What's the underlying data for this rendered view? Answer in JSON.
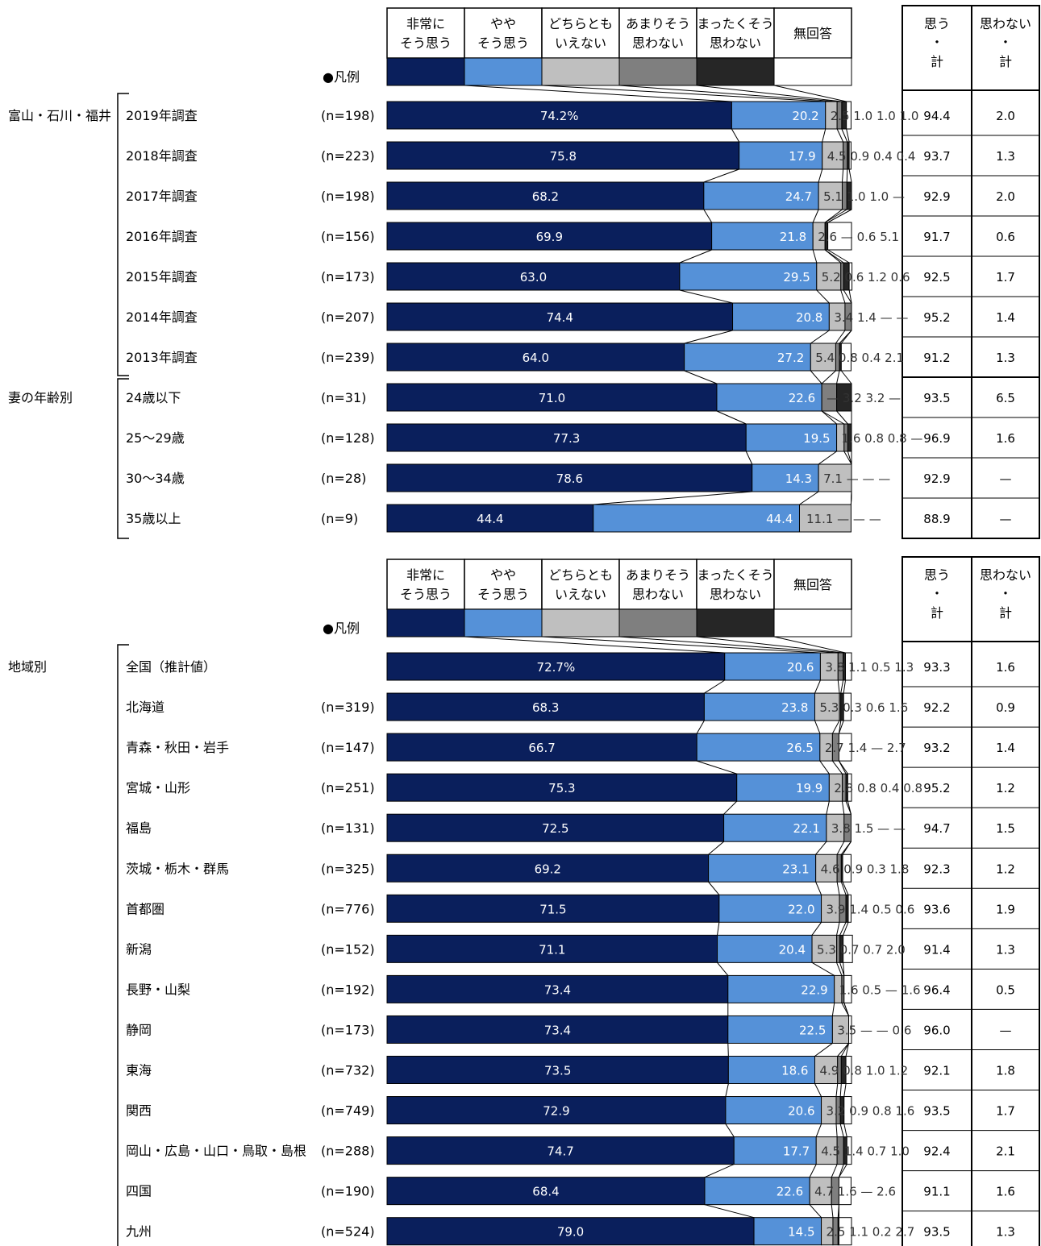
{
  "legend": {
    "marker": "●凡例",
    "categories": [
      {
        "line1": "非常に",
        "line2": "そう思う",
        "color": "#0a1f5c"
      },
      {
        "line1": "やや",
        "line2": "そう思う",
        "color": "#5591d8"
      },
      {
        "line1": "どちらとも",
        "line2": "いえない",
        "color": "#bfbfbf"
      },
      {
        "line1": "あまりそう",
        "line2": "思わない",
        "color": "#7f7f7f"
      },
      {
        "line1": "まったくそう",
        "line2": "思わない",
        "color": "#262626"
      },
      {
        "line1": "無回答",
        "line2": "",
        "color": "#ffffff"
      }
    ],
    "total_headers": [
      {
        "line1": "思う",
        "line2": "・",
        "line3": "計"
      },
      {
        "line1": "思わない",
        "line2": "・",
        "line3": "計"
      }
    ]
  },
  "chart_data": [
    {
      "type": "bar",
      "stacked": true,
      "orientation": "horizontal",
      "groups": [
        {
          "label": "富山・石川・福井",
          "rows": [
            0,
            6
          ]
        },
        {
          "label": "妻の年齢別",
          "rows": [
            7,
            10
          ]
        }
      ],
      "rows": [
        {
          "label": "2019年調査",
          "n": "(n=198)",
          "values": [
            74.2,
            20.2,
            2.5,
            1.0,
            1.0,
            1.0
          ],
          "value_labels": [
            "74.2%",
            "20.2",
            "2.5",
            "1.0",
            "1.0",
            "1.0"
          ],
          "total_yes": "94.4",
          "total_no": "2.0"
        },
        {
          "label": "2018年調査",
          "n": "(n=223)",
          "values": [
            75.8,
            17.9,
            4.5,
            0.9,
            0.4,
            0.4
          ],
          "value_labels": [
            "75.8",
            "17.9",
            "4.5",
            "0.9",
            "0.4",
            "0.4"
          ],
          "total_yes": "93.7",
          "total_no": "1.3"
        },
        {
          "label": "2017年調査",
          "n": "(n=198)",
          "values": [
            68.2,
            24.7,
            5.1,
            1.0,
            1.0,
            0
          ],
          "value_labels": [
            "68.2",
            "24.7",
            "5.1",
            "1.0",
            "1.0",
            "—"
          ],
          "total_yes": "92.9",
          "total_no": "2.0"
        },
        {
          "label": "2016年調査",
          "n": "(n=156)",
          "values": [
            69.9,
            21.8,
            2.6,
            0,
            0.6,
            5.1
          ],
          "value_labels": [
            "69.9",
            "21.8",
            "2.6",
            "—",
            "0.6",
            "5.1"
          ],
          "total_yes": "91.7",
          "total_no": "0.6"
        },
        {
          "label": "2015年調査",
          "n": "(n=173)",
          "values": [
            63.0,
            29.5,
            5.2,
            0.6,
            1.2,
            0.6
          ],
          "value_labels": [
            "63.0",
            "29.5",
            "5.2",
            "0.6",
            "1.2",
            "0.6"
          ],
          "total_yes": "92.5",
          "total_no": "1.7"
        },
        {
          "label": "2014年調査",
          "n": "(n=207)",
          "values": [
            74.4,
            20.8,
            3.4,
            1.4,
            0,
            0
          ],
          "value_labels": [
            "74.4",
            "20.8",
            "3.4",
            "1.4",
            "—",
            "—"
          ],
          "total_yes": "95.2",
          "total_no": "1.4"
        },
        {
          "label": "2013年調査",
          "n": "(n=239)",
          "values": [
            64.0,
            27.2,
            5.4,
            0.8,
            0.4,
            2.1
          ],
          "value_labels": [
            "64.0",
            "27.2",
            "5.4",
            "0.8",
            "0.4",
            "2.1"
          ],
          "total_yes": "91.2",
          "total_no": "1.3"
        },
        {
          "label": "24歳以下",
          "n": "(n=31)",
          "values": [
            71.0,
            22.6,
            0,
            3.2,
            3.2,
            0
          ],
          "value_labels": [
            "71.0",
            "22.6",
            "—",
            "3.2",
            "3.2",
            "—"
          ],
          "total_yes": "93.5",
          "total_no": "6.5"
        },
        {
          "label": "25～29歳",
          "n": "(n=128)",
          "values": [
            77.3,
            19.5,
            1.6,
            0.8,
            0.8,
            0
          ],
          "value_labels": [
            "77.3",
            "19.5",
            "1.6",
            "0.8",
            "0.8",
            "—"
          ],
          "total_yes": "96.9",
          "total_no": "1.6"
        },
        {
          "label": "30～34歳",
          "n": "(n=28)",
          "values": [
            78.6,
            14.3,
            7.1,
            0,
            0,
            0
          ],
          "value_labels": [
            "78.6",
            "14.3",
            "7.1",
            "—",
            "—",
            "—"
          ],
          "total_yes": "92.9",
          "total_no": "—"
        },
        {
          "label": "35歳以上",
          "n": "(n=9)",
          "values": [
            44.4,
            44.4,
            11.1,
            0,
            0,
            0
          ],
          "value_labels": [
            "44.4",
            "44.4",
            "11.1",
            "—",
            "—",
            "—"
          ],
          "total_yes": "88.9",
          "total_no": "—"
        }
      ]
    },
    {
      "type": "bar",
      "stacked": true,
      "orientation": "horizontal",
      "groups": [
        {
          "label": "地域別",
          "rows": [
            0,
            14
          ]
        }
      ],
      "rows": [
        {
          "label": "全国（推計値）",
          "n": "",
          "values": [
            72.7,
            20.6,
            3.8,
            1.1,
            0.5,
            1.3
          ],
          "value_labels": [
            "72.7%",
            "20.6",
            "3.8",
            "1.1",
            "0.5",
            "1.3"
          ],
          "total_yes": "93.3",
          "total_no": "1.6"
        },
        {
          "label": "北海道",
          "n": "(n=319)",
          "values": [
            68.3,
            23.8,
            5.3,
            0.3,
            0.6,
            1.6
          ],
          "value_labels": [
            "68.3",
            "23.8",
            "5.3",
            "0.3",
            "0.6",
            "1.6"
          ],
          "total_yes": "92.2",
          "total_no": "0.9"
        },
        {
          "label": "青森・秋田・岩手",
          "n": "(n=147)",
          "values": [
            66.7,
            26.5,
            2.7,
            1.4,
            0,
            2.7
          ],
          "value_labels": [
            "66.7",
            "26.5",
            "2.7",
            "1.4",
            "—",
            "2.7"
          ],
          "total_yes": "93.2",
          "total_no": "1.4"
        },
        {
          "label": "宮城・山形",
          "n": "(n=251)",
          "values": [
            75.3,
            19.9,
            2.8,
            0.8,
            0.4,
            0.8
          ],
          "value_labels": [
            "75.3",
            "19.9",
            "2.8",
            "0.8",
            "0.4",
            "0.8"
          ],
          "total_yes": "95.2",
          "total_no": "1.2"
        },
        {
          "label": "福島",
          "n": "(n=131)",
          "values": [
            72.5,
            22.1,
            3.8,
            1.5,
            0,
            0
          ],
          "value_labels": [
            "72.5",
            "22.1",
            "3.8",
            "1.5",
            "—",
            "—"
          ],
          "total_yes": "94.7",
          "total_no": "1.5"
        },
        {
          "label": "茨城・栃木・群馬",
          "n": "(n=325)",
          "values": [
            69.2,
            23.1,
            4.6,
            0.9,
            0.3,
            1.8
          ],
          "value_labels": [
            "69.2",
            "23.1",
            "4.6",
            "0.9",
            "0.3",
            "1.8"
          ],
          "total_yes": "92.3",
          "total_no": "1.2"
        },
        {
          "label": "首都圏",
          "n": "(n=776)",
          "values": [
            71.5,
            22.0,
            3.9,
            1.4,
            0.5,
            0.6
          ],
          "value_labels": [
            "71.5",
            "22.0",
            "3.9",
            "1.4",
            "0.5",
            "0.6"
          ],
          "total_yes": "93.6",
          "total_no": "1.9"
        },
        {
          "label": "新潟",
          "n": "(n=152)",
          "values": [
            71.1,
            20.4,
            5.3,
            0.7,
            0.7,
            2.0
          ],
          "value_labels": [
            "71.1",
            "20.4",
            "5.3",
            "0.7",
            "0.7",
            "2.0"
          ],
          "total_yes": "91.4",
          "total_no": "1.3"
        },
        {
          "label": "長野・山梨",
          "n": "(n=192)",
          "values": [
            73.4,
            22.9,
            1.6,
            0.5,
            0,
            1.6
          ],
          "value_labels": [
            "73.4",
            "22.9",
            "1.6",
            "0.5",
            "—",
            "1.6"
          ],
          "total_yes": "96.4",
          "total_no": "0.5"
        },
        {
          "label": "静岡",
          "n": "(n=173)",
          "values": [
            73.4,
            22.5,
            3.5,
            0,
            0,
            0.6
          ],
          "value_labels": [
            "73.4",
            "22.5",
            "3.5",
            "—",
            "—",
            "0.6"
          ],
          "total_yes": "96.0",
          "total_no": "—"
        },
        {
          "label": "東海",
          "n": "(n=732)",
          "values": [
            73.5,
            18.6,
            4.9,
            0.8,
            1.0,
            1.2
          ],
          "value_labels": [
            "73.5",
            "18.6",
            "4.9",
            "0.8",
            "1.0",
            "1.2"
          ],
          "total_yes": "92.1",
          "total_no": "1.8"
        },
        {
          "label": "関西",
          "n": "(n=749)",
          "values": [
            72.9,
            20.6,
            3.2,
            0.9,
            0.8,
            1.6
          ],
          "value_labels": [
            "72.9",
            "20.6",
            "3.2",
            "0.9",
            "0.8",
            "1.6"
          ],
          "total_yes": "93.5",
          "total_no": "1.7"
        },
        {
          "label": "岡山・広島・山口・鳥取・島根",
          "n": "(n=288)",
          "values": [
            74.7,
            17.7,
            4.5,
            1.4,
            0.7,
            1.0
          ],
          "value_labels": [
            "74.7",
            "17.7",
            "4.5",
            "1.4",
            "0.7",
            "1.0"
          ],
          "total_yes": "92.4",
          "total_no": "2.1"
        },
        {
          "label": "四国",
          "n": "(n=190)",
          "values": [
            68.4,
            22.6,
            4.7,
            1.6,
            0,
            2.6
          ],
          "value_labels": [
            "68.4",
            "22.6",
            "4.7",
            "1.6",
            "—",
            "2.6"
          ],
          "total_yes": "91.1",
          "total_no": "1.6"
        },
        {
          "label": "九州",
          "n": "(n=524)",
          "values": [
            79.0,
            14.5,
            2.5,
            1.1,
            0.2,
            2.7
          ],
          "value_labels": [
            "79.0",
            "14.5",
            "2.5",
            "1.1",
            "0.2",
            "2.7"
          ],
          "total_yes": "93.5",
          "total_no": "1.3"
        }
      ]
    }
  ]
}
